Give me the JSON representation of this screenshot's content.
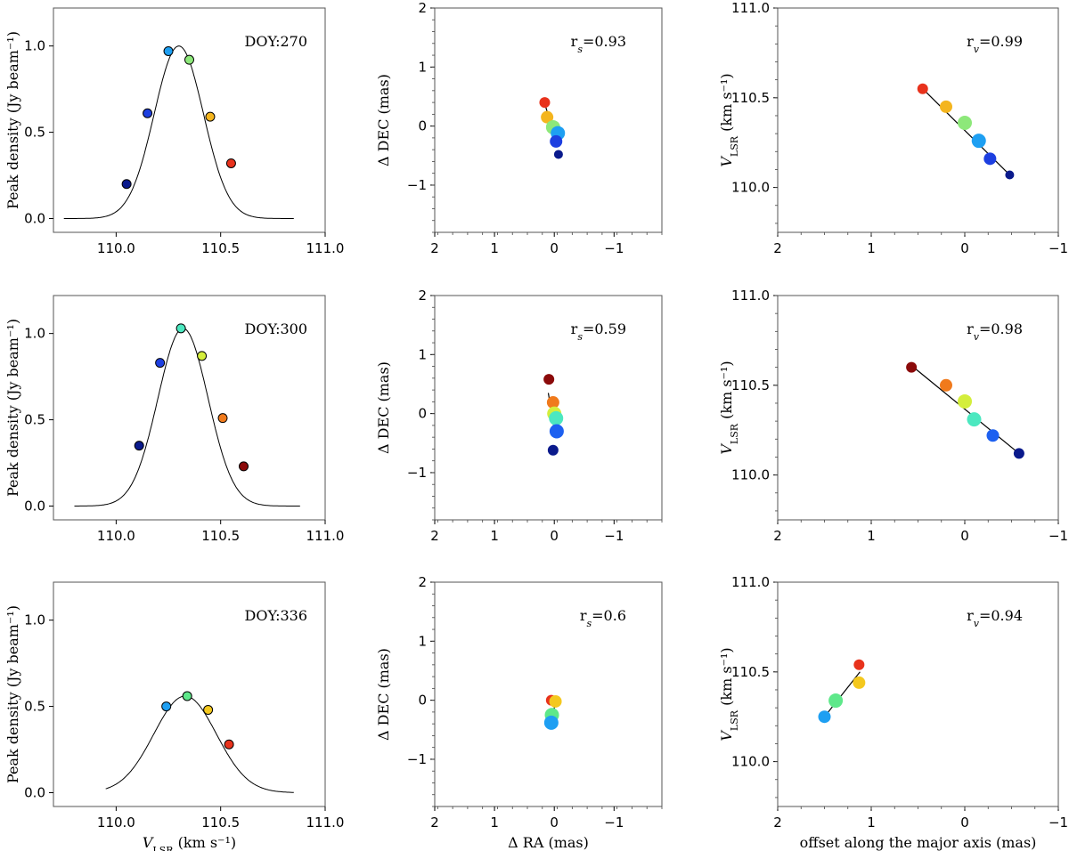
{
  "figure": {
    "rows": 3,
    "cols": 3
  },
  "colors": {
    "axis": "#555555",
    "line": "#000000",
    "marker_edge": "#000000"
  },
  "labels": {
    "peak_ylabel": "Peak density (Jy beam⁻¹)",
    "vlsr_xlabel": "V_LSR (km s⁻¹)",
    "dec_ylabel": "Δ DEC (mas)",
    "ra_xlabel": "Δ RA (mas)",
    "vlsr_ylabel": "V_LSR (km s⁻¹)",
    "offset_xlabel": "offset along the major axis (mas)"
  },
  "chart_data": [
    {
      "id": "spec-270",
      "type": "scatter",
      "panel": "spectrum",
      "annotation": "DOY:270",
      "xlim": [
        109.7,
        111.0
      ],
      "ylim": [
        -0.08,
        1.22
      ],
      "xticks": [
        110.0,
        110.5,
        111.0
      ],
      "xtick_labels": [
        "110.0",
        "110.5",
        "111.0"
      ],
      "yticks": [
        0.0,
        0.5,
        1.0
      ],
      "ytick_labels": [
        "0.0",
        "0.5",
        "1.0"
      ],
      "fit": {
        "amp": 1.0,
        "center": 110.3,
        "sigma": 0.118,
        "xmin": 109.75,
        "xmax": 110.85
      },
      "points": [
        {
          "x": 110.05,
          "y": 0.2,
          "c": "#0a1a8c"
        },
        {
          "x": 110.15,
          "y": 0.61,
          "c": "#1d3fe0"
        },
        {
          "x": 110.25,
          "y": 0.97,
          "c": "#1e9ff2"
        },
        {
          "x": 110.35,
          "y": 0.92,
          "c": "#8de87a"
        },
        {
          "x": 110.45,
          "y": 0.59,
          "c": "#f4b51e"
        },
        {
          "x": 110.55,
          "y": 0.32,
          "c": "#e8321c"
        }
      ],
      "xlabel": "",
      "ylabel": "Peak density (Jy beam⁻¹)"
    },
    {
      "id": "pos-270",
      "type": "scatter",
      "panel": "position",
      "annotation": "r_s=0.93",
      "xlim": [
        2,
        -1.8
      ],
      "ylim": [
        -1.8,
        2
      ],
      "xticks": [
        2,
        1,
        0,
        -1
      ],
      "xtick_labels": [
        "2",
        "1",
        "0",
        "−1"
      ],
      "yticks": [
        -1,
        0,
        1,
        2
      ],
      "ytick_labels": [
        "−1",
        "0",
        "1",
        "2"
      ],
      "fit_line": [
        [
          0.15,
          0.35
        ],
        [
          -0.05,
          -0.35
        ]
      ],
      "points": [
        {
          "x": 0.16,
          "y": 0.4,
          "c": "#e8321c",
          "s": 6
        },
        {
          "x": 0.12,
          "y": 0.15,
          "c": "#f4b51e",
          "s": 7
        },
        {
          "x": 0.02,
          "y": -0.02,
          "c": "#8de87a",
          "s": 8
        },
        {
          "x": -0.06,
          "y": -0.12,
          "c": "#1e9ff2",
          "s": 8
        },
        {
          "x": -0.03,
          "y": -0.26,
          "c": "#1d3fe0",
          "s": 7
        },
        {
          "x": -0.07,
          "y": -0.48,
          "c": "#0a1a8c",
          "s": 5
        }
      ],
      "xlabel": "",
      "ylabel": "Δ DEC (mas)"
    },
    {
      "id": "grad-270",
      "type": "scatter",
      "panel": "gradient",
      "annotation": "r_v=0.99",
      "xlim": [
        2,
        -1
      ],
      "ylim": [
        109.75,
        111.0
      ],
      "xticks": [
        2,
        1,
        0,
        -1
      ],
      "xtick_labels": [
        "2",
        "1",
        "0",
        "−1"
      ],
      "yticks": [
        110.0,
        110.5,
        111.0
      ],
      "ytick_labels": [
        "110.0",
        "110.5",
        "111.0"
      ],
      "fit_line": [
        [
          0.45,
          110.55
        ],
        [
          -0.48,
          110.07
        ]
      ],
      "points": [
        {
          "x": 0.45,
          "y": 110.55,
          "c": "#e8321c",
          "s": 6
        },
        {
          "x": 0.2,
          "y": 110.45,
          "c": "#f4b51e",
          "s": 7
        },
        {
          "x": 0.0,
          "y": 110.36,
          "c": "#8de87a",
          "s": 8
        },
        {
          "x": -0.15,
          "y": 110.26,
          "c": "#1e9ff2",
          "s": 8
        },
        {
          "x": -0.27,
          "y": 110.16,
          "c": "#1d3fe0",
          "s": 7
        },
        {
          "x": -0.48,
          "y": 110.07,
          "c": "#0a1a8c",
          "s": 5
        }
      ],
      "xlabel": "",
      "ylabel": "V_LSR (km s⁻¹)"
    },
    {
      "id": "spec-300",
      "type": "scatter",
      "panel": "spectrum",
      "annotation": "DOY:300",
      "xlim": [
        109.7,
        111.0
      ],
      "ylim": [
        -0.08,
        1.22
      ],
      "xticks": [
        110.0,
        110.5,
        111.0
      ],
      "xtick_labels": [
        "110.0",
        "110.5",
        "111.0"
      ],
      "yticks": [
        0.0,
        0.5,
        1.0
      ],
      "ytick_labels": [
        "0.0",
        "0.5",
        "1.0"
      ],
      "fit": {
        "amp": 1.03,
        "center": 110.32,
        "sigma": 0.12,
        "xmin": 109.8,
        "xmax": 110.88
      },
      "points": [
        {
          "x": 110.11,
          "y": 0.35,
          "c": "#0a1a8c"
        },
        {
          "x": 110.21,
          "y": 0.83,
          "c": "#1d3fe0"
        },
        {
          "x": 110.31,
          "y": 1.03,
          "c": "#4ce8c0"
        },
        {
          "x": 110.41,
          "y": 0.87,
          "c": "#d4ee3c"
        },
        {
          "x": 110.51,
          "y": 0.51,
          "c": "#f07a1c"
        },
        {
          "x": 110.61,
          "y": 0.23,
          "c": "#8b0a0a"
        }
      ],
      "xlabel": "",
      "ylabel": "Peak density (Jy beam⁻¹)"
    },
    {
      "id": "pos-300",
      "type": "scatter",
      "panel": "position",
      "annotation": "r_s=0.59",
      "xlim": [
        2,
        -1.8
      ],
      "ylim": [
        -1.8,
        2
      ],
      "xticks": [
        2,
        1,
        0,
        -1
      ],
      "xtick_labels": [
        "2",
        "1",
        "0",
        "−1"
      ],
      "yticks": [
        -1,
        0,
        1,
        2
      ],
      "ytick_labels": [
        "−1",
        "0",
        "1",
        "2"
      ],
      "fit_line": [
        [
          0.1,
          0.35
        ],
        [
          -0.02,
          -0.4
        ]
      ],
      "points": [
        {
          "x": 0.09,
          "y": 0.58,
          "c": "#8b0a0a",
          "s": 6
        },
        {
          "x": 0.02,
          "y": 0.19,
          "c": "#f07a1c",
          "s": 7
        },
        {
          "x": 0.0,
          "y": 0.0,
          "c": "#d4ee3c",
          "s": 8
        },
        {
          "x": -0.03,
          "y": -0.08,
          "c": "#4ce8c0",
          "s": 8
        },
        {
          "x": -0.04,
          "y": -0.3,
          "c": "#1d60f0",
          "s": 8
        },
        {
          "x": 0.02,
          "y": -0.62,
          "c": "#0a1a8c",
          "s": 6
        }
      ],
      "xlabel": "",
      "ylabel": "Δ DEC (mas)"
    },
    {
      "id": "grad-300",
      "type": "scatter",
      "panel": "gradient",
      "annotation": "r_v=0.98",
      "xlim": [
        2,
        -1
      ],
      "ylim": [
        109.75,
        111.0
      ],
      "xticks": [
        2,
        1,
        0,
        -1
      ],
      "xtick_labels": [
        "2",
        "1",
        "0",
        "−1"
      ],
      "yticks": [
        110.0,
        110.5,
        111.0
      ],
      "ytick_labels": [
        "110.0",
        "110.5",
        "111.0"
      ],
      "fit_line": [
        [
          0.57,
          110.61
        ],
        [
          -0.58,
          110.12
        ]
      ],
      "points": [
        {
          "x": 0.57,
          "y": 110.6,
          "c": "#8b0a0a",
          "s": 6
        },
        {
          "x": 0.2,
          "y": 110.5,
          "c": "#f07a1c",
          "s": 7
        },
        {
          "x": 0.0,
          "y": 110.41,
          "c": "#d4ee3c",
          "s": 8
        },
        {
          "x": -0.1,
          "y": 110.31,
          "c": "#4ce8c0",
          "s": 8
        },
        {
          "x": -0.3,
          "y": 110.22,
          "c": "#1d60f0",
          "s": 7
        },
        {
          "x": -0.58,
          "y": 110.12,
          "c": "#0a1a8c",
          "s": 6
        }
      ],
      "xlabel": "",
      "ylabel": "V_LSR (km s⁻¹)"
    },
    {
      "id": "spec-336",
      "type": "scatter",
      "panel": "spectrum",
      "annotation": "DOY:336",
      "xlim": [
        109.7,
        111.0
      ],
      "ylim": [
        -0.08,
        1.22
      ],
      "xticks": [
        110.0,
        110.5,
        111.0
      ],
      "xtick_labels": [
        "110.0",
        "110.5",
        "111.0"
      ],
      "yticks": [
        0.0,
        0.5,
        1.0
      ],
      "ytick_labels": [
        "0.0",
        "0.5",
        "1.0"
      ],
      "fit": {
        "amp": 0.56,
        "center": 110.33,
        "sigma": 0.15,
        "xmin": 109.95,
        "xmax": 110.85
      },
      "points": [
        {
          "x": 110.24,
          "y": 0.5,
          "c": "#1e9ff2"
        },
        {
          "x": 110.34,
          "y": 0.56,
          "c": "#5ee88a"
        },
        {
          "x": 110.44,
          "y": 0.48,
          "c": "#f4c81e"
        },
        {
          "x": 110.54,
          "y": 0.28,
          "c": "#e8321c"
        }
      ],
      "xlabel": "V_LSR (km s⁻¹)",
      "ylabel": "Peak density (Jy beam⁻¹)"
    },
    {
      "id": "pos-336",
      "type": "scatter",
      "panel": "position",
      "annotation": "r_s=0.6",
      "xlim": [
        2,
        -1.8
      ],
      "ylim": [
        -1.8,
        2
      ],
      "xticks": [
        2,
        1,
        0,
        -1
      ],
      "xtick_labels": [
        "2",
        "1",
        "0",
        "−1"
      ],
      "yticks": [
        -1,
        0,
        1,
        2
      ],
      "ytick_labels": [
        "−1",
        "0",
        "1",
        "2"
      ],
      "fit_line": [
        [
          0.04,
          -0.3
        ],
        [
          -0.03,
          0.0
        ]
      ],
      "points": [
        {
          "x": 0.05,
          "y": 0.0,
          "c": "#e8321c",
          "s": 6
        },
        {
          "x": -0.02,
          "y": -0.02,
          "c": "#f4c81e",
          "s": 7
        },
        {
          "x": 0.04,
          "y": -0.25,
          "c": "#5ee88a",
          "s": 8
        },
        {
          "x": 0.05,
          "y": -0.38,
          "c": "#1e9ff2",
          "s": 8
        }
      ],
      "xlabel": "Δ RA (mas)",
      "ylabel": "Δ DEC (mas)"
    },
    {
      "id": "grad-336",
      "type": "scatter",
      "panel": "gradient",
      "annotation": "r_v=0.94",
      "xlim": [
        2,
        -1
      ],
      "ylim": [
        109.75,
        111.0
      ],
      "xticks": [
        2,
        1,
        0,
        -1
      ],
      "xtick_labels": [
        "2",
        "1",
        "0",
        "−1"
      ],
      "yticks": [
        110.0,
        110.5,
        111.0
      ],
      "ytick_labels": [
        "110.0",
        "110.5",
        "111.0"
      ],
      "fit_line": [
        [
          1.5,
          110.25
        ],
        [
          1.12,
          110.5
        ]
      ],
      "points": [
        {
          "x": 1.5,
          "y": 110.25,
          "c": "#1e9ff2",
          "s": 7
        },
        {
          "x": 1.38,
          "y": 110.34,
          "c": "#5ee88a",
          "s": 8
        },
        {
          "x": 1.13,
          "y": 110.44,
          "c": "#f4c81e",
          "s": 7
        },
        {
          "x": 1.13,
          "y": 110.54,
          "c": "#e8321c",
          "s": 6
        }
      ],
      "xlabel": "offset along the major axis (mas)",
      "ylabel": "V_LSR (km s⁻¹)"
    }
  ]
}
